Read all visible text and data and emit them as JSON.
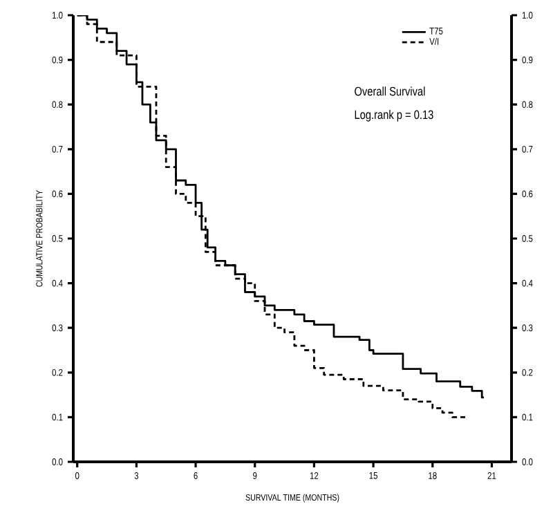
{
  "chart_data": {
    "type": "step",
    "xlabel": "SURVIVAL TIME (MONTHS)",
    "ylabel": "CUMULATIVE PROBABILITY",
    "annotations": [
      "Overall Survival",
      "Log.rank p = 0.13"
    ],
    "legend": "top right",
    "grid": false,
    "marker": "none",
    "xlim": [
      -0.2,
      22
    ],
    "xticks": [
      0,
      3,
      6,
      9,
      12,
      15,
      18,
      21
    ],
    "ylim": [
      0,
      1
    ],
    "yticks": [
      {
        "value": 0,
        "label": "0.0"
      },
      0.1,
      0.2,
      0.3,
      0.4,
      0.5,
      0.6,
      0.7,
      0.8,
      0.9,
      {
        "value": 1,
        "label": "1.0"
      }
    ],
    "y2lim": [
      0,
      1
    ],
    "y2ticks": [
      {
        "value": 0,
        "label": "0.0"
      },
      0.1,
      0.2,
      0.3,
      0.4,
      0.5,
      0.6,
      0.7,
      0.8,
      0.9,
      {
        "value": 1,
        "label": "1.0"
      }
    ],
    "series": [
      {
        "name": "T75",
        "color": "#000000",
        "line_style": "solid",
        "x": [
          0,
          0.5,
          1.0,
          1.5,
          2,
          2.5,
          3,
          3.3,
          3.7,
          4,
          4.5,
          5,
          5.5,
          6,
          6.3,
          6.6,
          7,
          7.5,
          8,
          8.5,
          9,
          9.5,
          10,
          11,
          11.5,
          12,
          13,
          14.3,
          14.8,
          15,
          16.5,
          17.4,
          18.2,
          19.4,
          20,
          20.5,
          20.6
        ],
        "values": [
          1.0,
          0.99,
          0.97,
          0.96,
          0.92,
          0.89,
          0.85,
          0.8,
          0.76,
          0.72,
          0.7,
          0.63,
          0.62,
          0.58,
          0.52,
          0.48,
          0.45,
          0.44,
          0.42,
          0.38,
          0.37,
          0.35,
          0.34,
          0.33,
          0.315,
          0.307,
          0.28,
          0.273,
          0.25,
          0.242,
          0.208,
          0.198,
          0.18,
          0.168,
          0.159,
          0.144,
          0.144
        ]
      },
      {
        "name": "V/I",
        "color": "#000000",
        "line_style": "dashed",
        "x": [
          0,
          0.5,
          1,
          2,
          3,
          4,
          4.5,
          5,
          5.5,
          6,
          6.5,
          7,
          8,
          8.5,
          9,
          9.5,
          10,
          10.5,
          11,
          11.5,
          12,
          12.5,
          13.5,
          14.5,
          15.5,
          16.5,
          17.3,
          18,
          18.5,
          19,
          19.7
        ],
        "values": [
          1.0,
          0.98,
          0.94,
          0.91,
          0.84,
          0.73,
          0.66,
          0.6,
          0.58,
          0.55,
          0.47,
          0.44,
          0.41,
          0.4,
          0.36,
          0.33,
          0.3,
          0.29,
          0.26,
          0.25,
          0.21,
          0.195,
          0.185,
          0.17,
          0.16,
          0.14,
          0.135,
          0.12,
          0.11,
          0.1,
          0.1
        ]
      }
    ]
  }
}
